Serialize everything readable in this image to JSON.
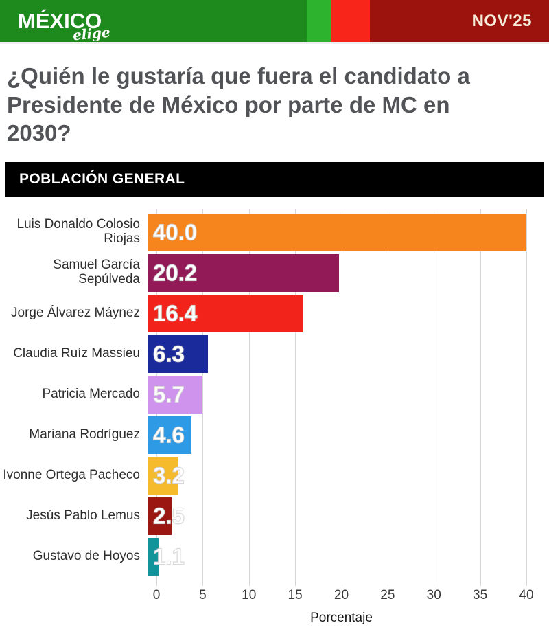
{
  "header": {
    "logo_main": "MÉXICO",
    "logo_sub": "elige",
    "date_label": "NOV'25",
    "colors": {
      "dark_green": "#1e8a1e",
      "light_green": "#2db32d",
      "bright_red": "#f8261a",
      "dark_red": "#9c130e"
    }
  },
  "title_lines": [
    "¿Quién le gustaría que fuera el candidato a",
    "Presidente de México por parte de MC en",
    "2030?"
  ],
  "section_label": "POBLACIÓN GENERAL",
  "chart_data": {
    "type": "bar",
    "orientation": "horizontal",
    "categories": [
      "Luis Donaldo Colosio Riojas",
      "Samuel García Sepúlveda",
      "Jorge Álvarez Máynez",
      "Claudia Ruíz Massieu",
      "Patricia Mercado",
      "Mariana Rodríguez",
      "Ivonne Ortega Pacheco",
      "Jesús Pablo Lemus",
      "Gustavo de Hoyos"
    ],
    "values": [
      40.0,
      20.2,
      16.4,
      6.3,
      5.7,
      4.6,
      3.2,
      2.5,
      1.1
    ],
    "bar_colors": [
      "#f6851d",
      "#911a57",
      "#f2231a",
      "#1b2a9b",
      "#cf93ee",
      "#2e9ae6",
      "#f5bb2d",
      "#9a1712",
      "#12949a"
    ],
    "value_label_color": "#ffffff",
    "xlabel": "Porcentaje",
    "xlim": [
      0,
      40
    ],
    "xticks": [
      0,
      5,
      10,
      15,
      20,
      25,
      30,
      35,
      40
    ],
    "grid": true,
    "legend": false
  }
}
